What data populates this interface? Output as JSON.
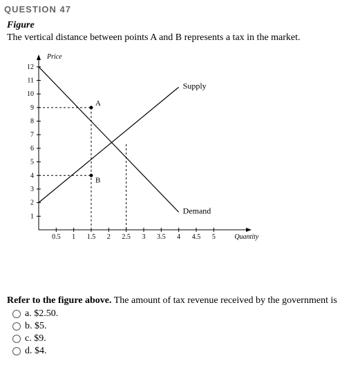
{
  "question_number": "QUESTION 47",
  "figure_label": "Figure",
  "figure_desc": "The vertical distance between points A and B represents a tax in the market.",
  "prompt_bold": "Refer to the figure above.",
  "prompt_rest": " The amount of tax revenue received by the government is",
  "options": {
    "a": "a. $2.50.",
    "b": "b. $5.",
    "c": "c. $9.",
    "d": "d. $4."
  },
  "chart": {
    "y_axis_label": "Price",
    "x_axis_label": "Quantity",
    "supply_label": "Supply",
    "demand_label": "Demand",
    "ylim": [
      0,
      12.7
    ],
    "xlim": [
      0,
      6.0
    ],
    "ytick_step": 1,
    "xtick_step": 0.5,
    "y_ticks": [
      1,
      2,
      3,
      4,
      5,
      6,
      7,
      8,
      9,
      10,
      11,
      12
    ],
    "x_ticks": [
      0.5,
      1,
      1.5,
      2,
      2.5,
      3,
      3.5,
      4,
      4.5,
      5
    ],
    "x_tick_labels": [
      "0.5",
      "1",
      "1.5",
      "2",
      "2.5",
      "3",
      "3.5",
      "4",
      "4.5",
      "5"
    ],
    "points": {
      "A": {
        "x": 1.5,
        "y": 9,
        "label": "A"
      },
      "B": {
        "x": 1.5,
        "y": 4,
        "label": "B"
      }
    },
    "supply_line": {
      "x1": 0,
      "y1": 2,
      "x2": 4,
      "y2": 10.5
    },
    "demand_line": {
      "x1": 0,
      "y1": 12,
      "x2": 4,
      "y2": 1.3
    },
    "axis_color": "#000000",
    "tick_font_size": 10,
    "label_font_size": 10
  }
}
